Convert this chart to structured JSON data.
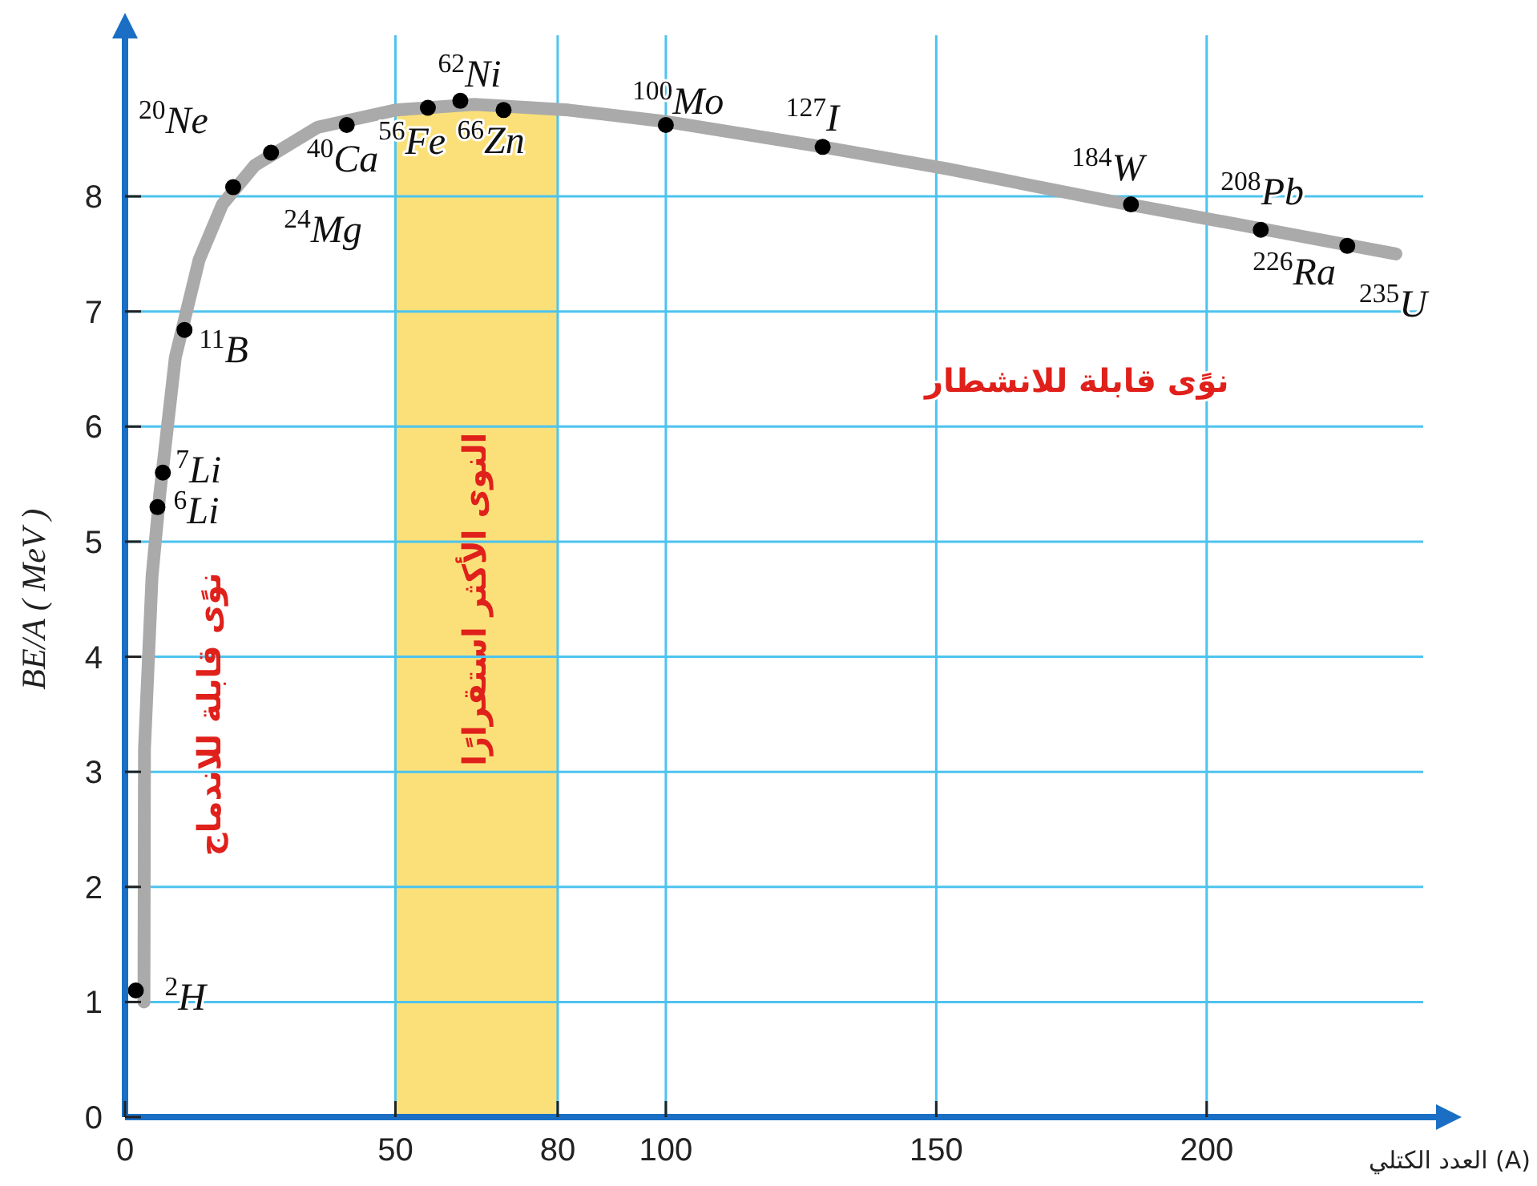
{
  "chart_data": {
    "type": "line",
    "xlabel": "العدد الكتلي (A)",
    "ylabel": "BE/A ( MeV )",
    "xlim": [
      0,
      243
    ],
    "ylim": [
      0,
      9.4
    ],
    "xticks": [
      0,
      50,
      80,
      100,
      150,
      200
    ],
    "yticks": [
      0,
      1,
      2,
      3,
      4,
      5,
      6,
      7,
      8
    ],
    "grid": true,
    "series": [
      {
        "type": "line",
        "color": "#aaaaaa",
        "marker": "none",
        "x": [
          3.5,
          3.6,
          5,
          6.4,
          9.3,
          13.7,
          18,
          24,
          35.6,
          50,
          64.6,
          82,
          100,
          129,
          152,
          181,
          210,
          235
        ],
        "values": [
          1.0,
          3.2,
          4.7,
          5.4,
          6.6,
          7.45,
          7.93,
          8.27,
          8.6,
          8.75,
          8.8,
          8.75,
          8.65,
          8.43,
          8.24,
          7.97,
          7.72,
          7.5
        ]
      },
      {
        "type": "scatter",
        "color": "#000000",
        "marker": "circle",
        "x": [
          2,
          6,
          7,
          11,
          20,
          27,
          41,
          56,
          62,
          70,
          100,
          129,
          186,
          210,
          226
        ],
        "values": [
          1.1,
          5.3,
          5.6,
          6.84,
          8.08,
          8.38,
          8.62,
          8.77,
          8.83,
          8.75,
          8.62,
          8.43,
          7.93,
          7.71,
          7.57
        ]
      }
    ],
    "bands": [
      {
        "axis": "x",
        "from": 50,
        "to": 80,
        "label": "النوى الأكثر استقرارًا",
        "color": "#fbe07a"
      }
    ],
    "annotations": [
      {
        "text": "$^{2}$H",
        "x": 2,
        "y": 1.1
      },
      {
        "text": "$^{6}$Li",
        "x": 6,
        "y": 5.3
      },
      {
        "text": "$^{7}$Li",
        "x": 7,
        "y": 5.6
      },
      {
        "text": "$^{11}$B",
        "x": 11,
        "y": 6.84
      },
      {
        "text": "$^{20}$Ne",
        "x": 20,
        "y": 8.08
      },
      {
        "text": "$^{24}$Mg",
        "x": 27,
        "y": 8.38
      },
      {
        "text": "$^{40}$Ca",
        "x": 41,
        "y": 8.62
      },
      {
        "text": "$^{56}$Fe",
        "x": 56,
        "y": 8.77
      },
      {
        "text": "$^{62}$Ni",
        "x": 62,
        "y": 8.83
      },
      {
        "text": "$^{66}$Zn",
        "x": 70,
        "y": 8.75
      },
      {
        "text": "$^{100}$Mo",
        "x": 100,
        "y": 8.62
      },
      {
        "text": "$^{127}$I",
        "x": 129,
        "y": 8.43
      },
      {
        "text": "$^{184}$W",
        "x": 186,
        "y": 7.93
      },
      {
        "text": "$^{208}$Pb",
        "x": 210,
        "y": 7.71
      },
      {
        "text": "$^{226}$Ra",
        "x": 226,
        "y": 7.57
      },
      {
        "text": "$^{235}$U",
        "x": 235,
        "y": 7.5
      },
      "نوًى قابلة للانشطار",
      "نوًى قابلة للاندماج"
    ]
  }
}
